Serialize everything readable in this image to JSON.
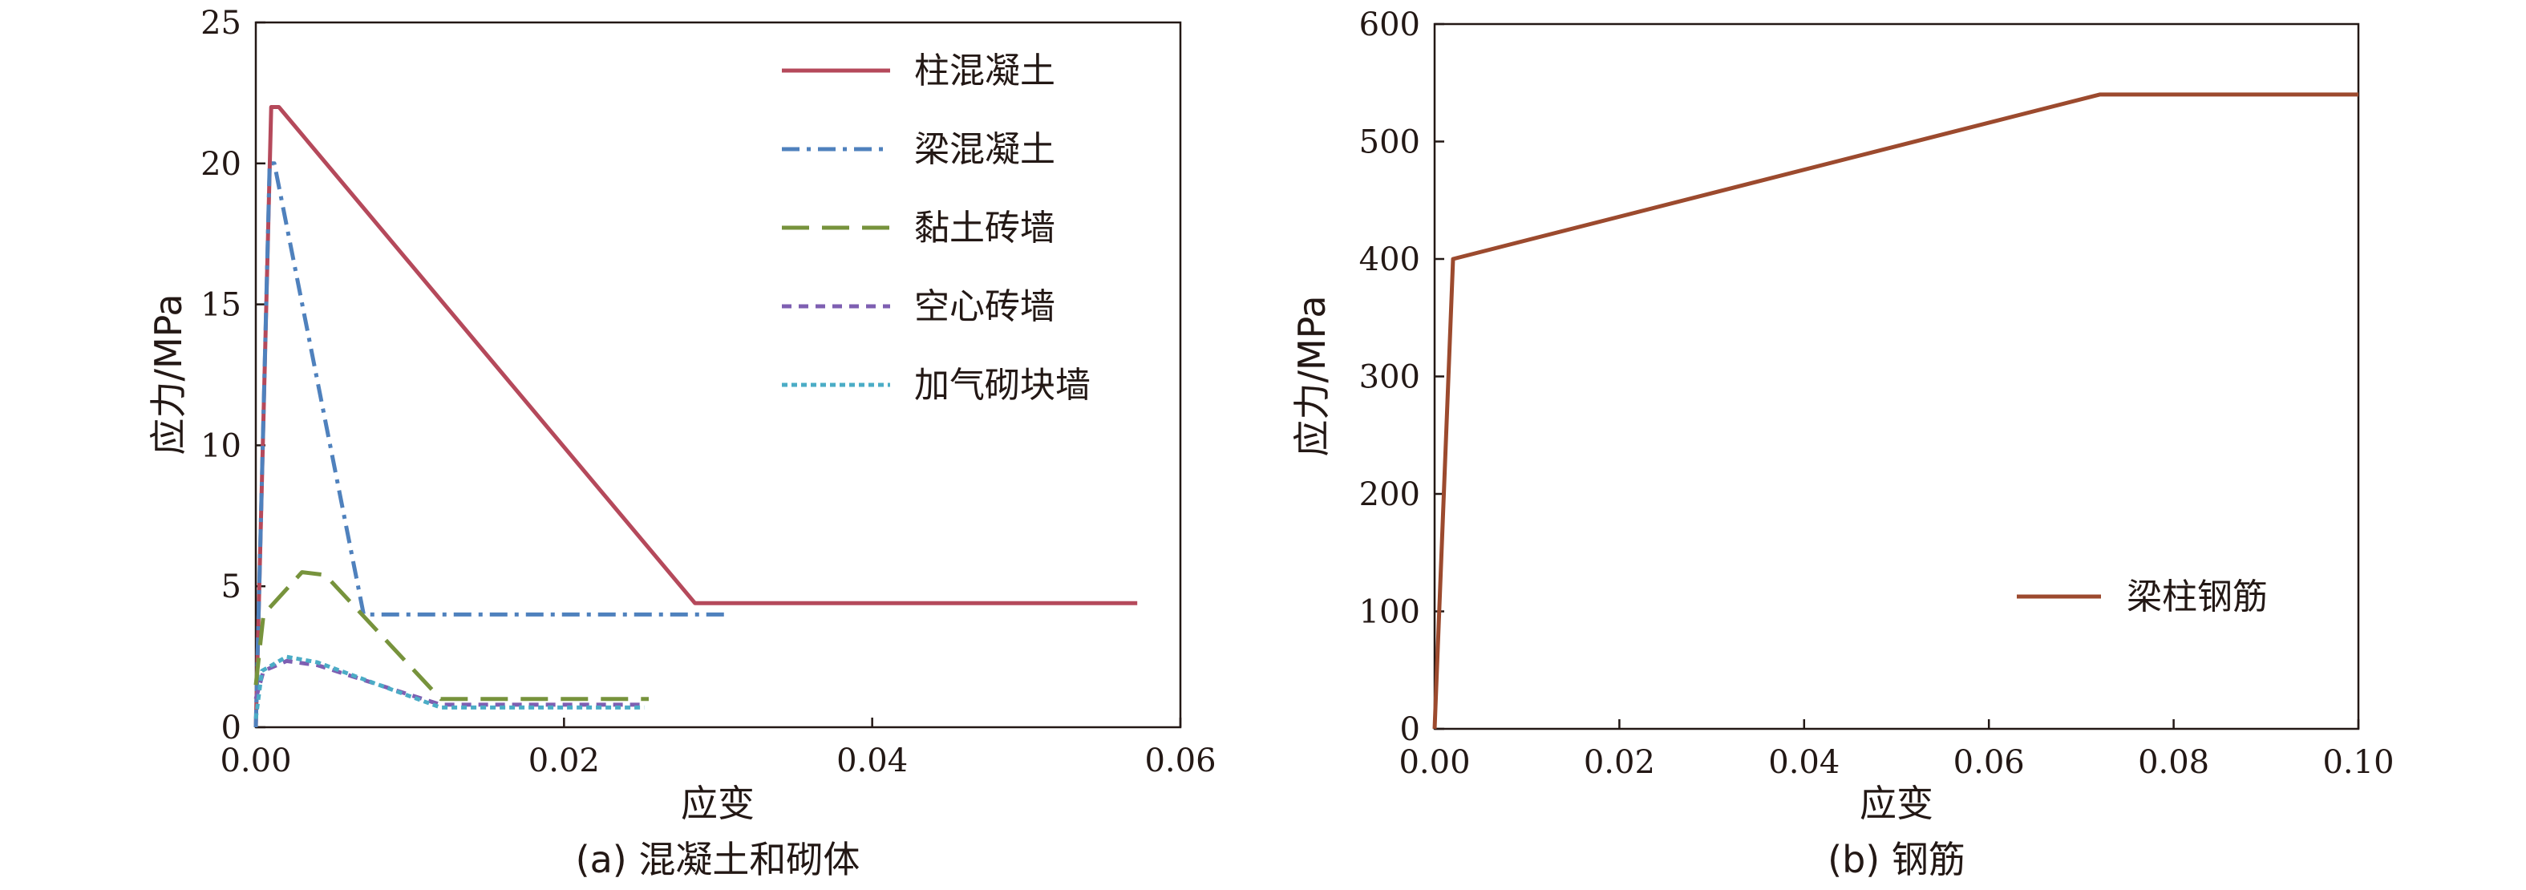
{
  "chart_data": [
    {
      "type": "line",
      "caption": "(a) 混凝土和砌体",
      "xlabel": "应变",
      "ylabel": "应力/MPa",
      "xlim": [
        0,
        0.06
      ],
      "ylim": [
        0,
        25
      ],
      "xticks": [
        0,
        0.02,
        0.04,
        0.06
      ],
      "xtick_labels": [
        "0.00",
        "0.02",
        "0.04",
        "0.06"
      ],
      "yticks": [
        0,
        5,
        10,
        15,
        20,
        25
      ],
      "ytick_labels": [
        "0",
        "5",
        "10",
        "15",
        "20",
        "25"
      ],
      "grid": false,
      "legend_position": "top-right",
      "series": [
        {
          "name": "柱混凝土",
          "color": "#b5495b",
          "dash": "solid",
          "points": [
            [
              0,
              0
            ],
            [
              0.001,
              22
            ],
            [
              0.0015,
              22
            ],
            [
              0.0285,
              4.4
            ],
            [
              0.0572,
              4.4
            ]
          ]
        },
        {
          "name": "梁混凝土",
          "color": "#4f81bd",
          "dash": "dashdot",
          "points": [
            [
              0,
              0
            ],
            [
              0.0009,
              20
            ],
            [
              0.0012,
              20
            ],
            [
              0.007,
              4
            ],
            [
              0.0305,
              4
            ]
          ]
        },
        {
          "name": "黏土砖墙",
          "color": "#77933c",
          "dash": "dashed",
          "points": [
            [
              0,
              1.5
            ],
            [
              0.0005,
              4
            ],
            [
              0.003,
              5.5
            ],
            [
              0.0045,
              5.4
            ],
            [
              0.012,
              1
            ],
            [
              0.0255,
              1
            ]
          ]
        },
        {
          "name": "空心砖墙",
          "color": "#7e5fb2",
          "dash": "shortdash",
          "points": [
            [
              0,
              1
            ],
            [
              0.0005,
              2
            ],
            [
              0.002,
              2.35
            ],
            [
              0.004,
              2.2
            ],
            [
              0.012,
              0.8
            ],
            [
              0.025,
              0.8
            ]
          ]
        },
        {
          "name": "加气砌块墙",
          "color": "#4bacc6",
          "dash": "dotted",
          "points": [
            [
              0,
              0.3
            ],
            [
              0.0004,
              2
            ],
            [
              0.002,
              2.5
            ],
            [
              0.004,
              2.3
            ],
            [
              0.012,
              0.7
            ],
            [
              0.0252,
              0.7
            ]
          ]
        }
      ]
    },
    {
      "type": "line",
      "caption": "(b) 钢筋",
      "xlabel": "应变",
      "ylabel": "应力/MPa",
      "xlim": [
        0,
        0.1
      ],
      "ylim": [
        0,
        600
      ],
      "xticks": [
        0,
        0.02,
        0.04,
        0.06,
        0.08,
        0.1
      ],
      "xtick_labels": [
        "0.00",
        "0.02",
        "0.04",
        "0.06",
        "0.08",
        "0.10"
      ],
      "yticks": [
        0,
        100,
        200,
        300,
        400,
        500,
        600
      ],
      "ytick_labels": [
        "0",
        "100",
        "200",
        "300",
        "400",
        "500",
        "600"
      ],
      "grid": false,
      "legend_position": "right-lower",
      "series": [
        {
          "name": "梁柱钢筋",
          "color": "#9c4a2e",
          "dash": "solid",
          "points": [
            [
              0,
              0
            ],
            [
              0.002,
              400
            ],
            [
              0.072,
              540
            ],
            [
              0.1,
              540
            ]
          ]
        }
      ]
    }
  ]
}
